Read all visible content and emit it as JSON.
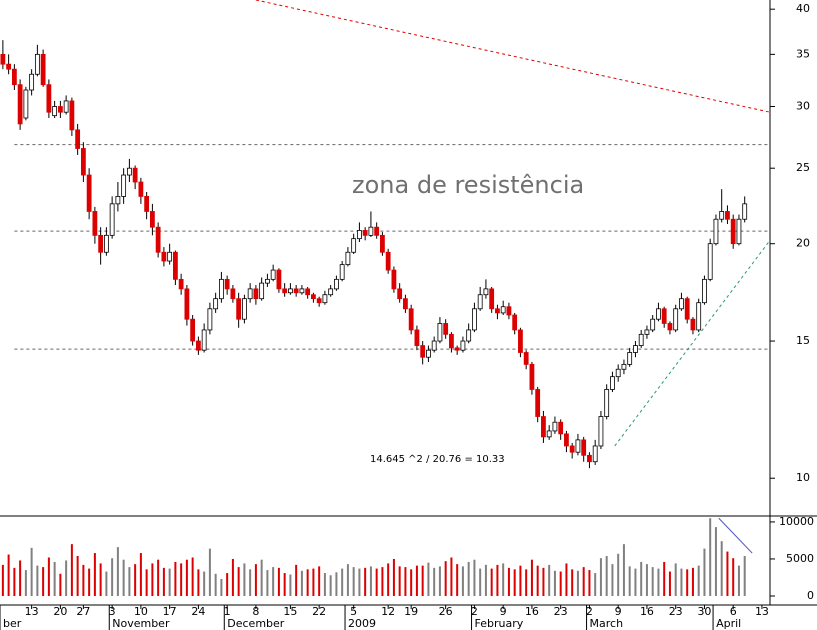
{
  "chart_data": {
    "type": "candlestick",
    "annotations": [
      "zona de resistência",
      "14.645 ^2 / 20.76 = 10.33"
    ],
    "ohlc": [
      [
        35,
        36.5,
        33.5,
        34
      ],
      [
        34,
        35,
        33,
        33.5
      ],
      [
        33.5,
        34,
        31.5,
        32
      ],
      [
        32,
        32.5,
        28,
        28.5
      ],
      [
        29,
        31.8,
        28.8,
        31.5
      ],
      [
        31.5,
        33.5,
        31,
        33
      ],
      [
        33,
        36,
        32.8,
        35
      ],
      [
        35,
        35.5,
        31.8,
        32
      ],
      [
        32,
        32.5,
        29,
        29.5
      ],
      [
        29.2,
        30.5,
        29,
        30
      ],
      [
        30,
        30.5,
        29,
        29.5
      ],
      [
        29.5,
        31,
        29.3,
        30.5
      ],
      [
        30.5,
        30.8,
        27.5,
        28
      ],
      [
        28,
        28.5,
        26,
        26.5
      ],
      [
        26.5,
        27,
        24,
        24.5
      ],
      [
        24.5,
        25,
        21.5,
        22
      ],
      [
        22,
        22.3,
        20,
        20.5
      ],
      [
        20.5,
        21,
        18.8,
        19.5
      ],
      [
        19.5,
        21,
        19.3,
        20.5
      ],
      [
        20.5,
        23,
        20.3,
        22.5
      ],
      [
        22.5,
        24,
        22,
        23
      ],
      [
        23,
        25,
        22.5,
        24.5
      ],
      [
        24.5,
        25.7,
        24,
        25
      ],
      [
        25,
        25.2,
        23.5,
        24
      ],
      [
        24,
        24.3,
        22.5,
        23
      ],
      [
        23,
        23.3,
        21.5,
        22
      ],
      [
        22,
        22.5,
        20.5,
        21
      ],
      [
        21,
        21.3,
        19.2,
        19.5
      ],
      [
        19.5,
        19.8,
        18.7,
        19
      ],
      [
        19,
        20,
        18.8,
        19.5
      ],
      [
        19.5,
        19.6,
        17.7,
        18
      ],
      [
        18,
        18.3,
        17.2,
        17.5
      ],
      [
        17.5,
        17.7,
        15.7,
        16
      ],
      [
        16,
        16.2,
        14.8,
        15
      ],
      [
        15,
        15.2,
        14.4,
        14.6
      ],
      [
        14.6,
        15.8,
        14.5,
        15.5
      ],
      [
        15.5,
        16.8,
        15.3,
        16.5
      ],
      [
        16.5,
        17.3,
        16.3,
        17
      ],
      [
        17,
        18.4,
        16.8,
        18
      ],
      [
        18,
        18.2,
        17.2,
        17.5
      ],
      [
        17.5,
        17.7,
        16.8,
        17
      ],
      [
        17,
        17.3,
        15.6,
        16
      ],
      [
        16,
        17.2,
        15.8,
        17
      ],
      [
        17,
        17.8,
        16.8,
        17.5
      ],
      [
        17.5,
        17.7,
        16.7,
        17
      ],
      [
        17,
        18.1,
        16.9,
        17.8
      ],
      [
        17.8,
        18.3,
        17.6,
        18
      ],
      [
        18,
        18.8,
        17.9,
        18.5
      ],
      [
        18.5,
        18.6,
        17.3,
        17.5
      ],
      [
        17.5,
        17.8,
        17.1,
        17.3
      ],
      [
        17.3,
        17.8,
        17.2,
        17.5
      ],
      [
        17.5,
        17.7,
        17.1,
        17.3
      ],
      [
        17.3,
        17.7,
        17.2,
        17.5
      ],
      [
        17.5,
        17.6,
        17,
        17.2
      ],
      [
        17.2,
        17.3,
        16.8,
        17
      ],
      [
        17,
        17.1,
        16.6,
        16.8
      ],
      [
        16.8,
        17.4,
        16.7,
        17.2
      ],
      [
        17.2,
        17.7,
        17.1,
        17.5
      ],
      [
        17.5,
        18.2,
        17.4,
        18
      ],
      [
        18,
        19,
        17.9,
        18.8
      ],
      [
        18.8,
        19.8,
        18.7,
        19.5
      ],
      [
        19.5,
        20.6,
        19.4,
        20.3
      ],
      [
        20.3,
        21.3,
        20.1,
        20.8
      ],
      [
        20.8,
        21,
        20.2,
        20.5
      ],
      [
        20.5,
        22,
        20.4,
        21
      ],
      [
        21,
        21.3,
        20.3,
        20.5
      ],
      [
        20.5,
        20.7,
        19.3,
        19.5
      ],
      [
        19.5,
        19.7,
        18.3,
        18.5
      ],
      [
        18.5,
        18.7,
        17.3,
        17.5
      ],
      [
        17.5,
        17.8,
        16.8,
        17
      ],
      [
        17,
        17.2,
        16.3,
        16.5
      ],
      [
        16.5,
        16.7,
        15.3,
        15.5
      ],
      [
        15.5,
        15.7,
        14.6,
        14.8
      ],
      [
        14.8,
        15,
        14,
        14.3
      ],
      [
        14.3,
        14.8,
        14.1,
        14.6
      ],
      [
        14.6,
        15.2,
        14.5,
        15
      ],
      [
        15,
        16.1,
        14.9,
        15.8
      ],
      [
        15.8,
        16,
        15.1,
        15.3
      ],
      [
        15.3,
        15.4,
        14.5,
        14.7
      ],
      [
        14.7,
        14.8,
        14.4,
        14.6
      ],
      [
        14.6,
        15.2,
        14.5,
        15
      ],
      [
        15,
        15.8,
        14.9,
        15.5
      ],
      [
        15.5,
        16.8,
        15.4,
        16.5
      ],
      [
        16.5,
        17.6,
        16.4,
        17.2
      ],
      [
        17.2,
        18,
        17,
        17.5
      ],
      [
        17.5,
        17.6,
        16.3,
        16.5
      ],
      [
        16.5,
        16.7,
        16,
        16.3
      ],
      [
        16.3,
        16.9,
        16.2,
        16.6
      ],
      [
        16.6,
        16.8,
        16,
        16.2
      ],
      [
        16.2,
        16.3,
        15.3,
        15.5
      ],
      [
        15.5,
        15.6,
        14.3,
        14.5
      ],
      [
        14.5,
        14.6,
        13.8,
        14
      ],
      [
        14,
        14.1,
        12.8,
        13
      ],
      [
        13,
        13.1,
        11.8,
        12
      ],
      [
        12,
        12.2,
        11.1,
        11.3
      ],
      [
        11.3,
        11.7,
        11.2,
        11.5
      ],
      [
        11.5,
        12,
        11.4,
        11.8
      ],
      [
        11.8,
        11.9,
        11.2,
        11.4
      ],
      [
        11.4,
        11.5,
        10.8,
        11
      ],
      [
        11,
        11.1,
        10.6,
        10.8
      ],
      [
        10.8,
        11.4,
        10.7,
        11.2
      ],
      [
        11.2,
        11.3,
        10.5,
        10.7
      ],
      [
        10.7,
        10.8,
        10.3,
        10.5
      ],
      [
        10.5,
        11.2,
        10.4,
        11
      ],
      [
        11,
        12.2,
        10.9,
        12
      ],
      [
        12,
        13.2,
        11.9,
        13
      ],
      [
        13,
        13.7,
        12.9,
        13.5
      ],
      [
        13.5,
        14,
        13.3,
        13.8
      ],
      [
        13.8,
        14.2,
        13.6,
        14
      ],
      [
        14,
        14.7,
        13.9,
        14.5
      ],
      [
        14.5,
        15,
        14.3,
        14.8
      ],
      [
        14.8,
        15.5,
        14.7,
        15.3
      ],
      [
        15.3,
        15.7,
        15.1,
        15.5
      ],
      [
        15.5,
        16.2,
        15.4,
        16
      ],
      [
        16,
        16.8,
        15.9,
        16.5
      ],
      [
        16.5,
        16.6,
        15.6,
        15.8
      ],
      [
        15.8,
        15.9,
        15.3,
        15.5
      ],
      [
        15.5,
        16.7,
        15.4,
        16.5
      ],
      [
        16.5,
        17.3,
        16.4,
        17
      ],
      [
        17,
        17.1,
        15.8,
        16
      ],
      [
        16,
        16.1,
        15.3,
        15.5
      ],
      [
        15.5,
        17,
        15.4,
        16.8
      ],
      [
        16.8,
        18.2,
        16.7,
        18
      ],
      [
        18,
        20.3,
        17.9,
        20
      ],
      [
        20,
        21.8,
        19.9,
        21.5
      ],
      [
        21.5,
        23.5,
        21.3,
        22
      ],
      [
        22,
        22.4,
        21.2,
        21.5
      ],
      [
        21.5,
        21.8,
        19.7,
        20
      ],
      [
        20,
        21.8,
        19.9,
        21.5
      ],
      [
        21.5,
        23,
        21.3,
        22.5
      ]
    ],
    "volume": [
      4200,
      5600,
      3800,
      4800,
      3500,
      6500,
      4100,
      3900,
      5200,
      4600,
      3000,
      4800,
      7000,
      5400,
      4200,
      3700,
      5800,
      4400,
      3300,
      5100,
      6600,
      4900,
      3900,
      4300,
      5800,
      3600,
      4400,
      4900,
      3800,
      3700,
      4600,
      4400,
      4900,
      5200,
      3600,
      3300,
      6400,
      3000,
      2300,
      3100,
      5000,
      3900,
      4400,
      3600,
      4300,
      4900,
      3500,
      3900,
      3800,
      3100,
      2900,
      4200,
      3400,
      3600,
      3700,
      4000,
      3100,
      2800,
      3200,
      3700,
      4300,
      3900,
      3700,
      3800,
      4000,
      3700,
      3900,
      4400,
      5000,
      4000,
      3900,
      3600,
      4100,
      4100,
      4500,
      3800,
      4000,
      4700,
      5200,
      4300,
      4000,
      4600,
      4900,
      3700,
      4200,
      3700,
      4200,
      4400,
      3800,
      3600,
      4100,
      3600,
      4900,
      4100,
      3800,
      4200,
      3400,
      3300,
      4400,
      3600,
      3400,
      3900,
      3500,
      3100,
      5100,
      5400,
      4300,
      5700,
      7000,
      4000,
      3700,
      4600,
      4300,
      3900,
      3700,
      4600,
      3300,
      4400,
      3700,
      3600,
      3800,
      4100,
      6400,
      10500,
      9300,
      7400,
      6000,
      5100,
      4100,
      5400
    ],
    "up_color": "#ffffff",
    "down_color": "#dd0000",
    "up_volume_color": "#808080",
    "down_volume_color": "#dd0000",
    "log_scale": true,
    "ylim": [
      8.97,
      41.1
    ],
    "yticks": [
      10,
      15,
      20,
      25,
      30,
      35,
      40
    ],
    "y2lim": [
      0,
      10800
    ],
    "y2ticks": [
      0,
      5000,
      10000
    ],
    "xlim": [
      -0.5,
      133.4
    ],
    "xticks": [
      {
        "value": 5,
        "label": "13"
      },
      {
        "value": 10,
        "label": "20"
      },
      {
        "value": 14,
        "label": "27"
      },
      {
        "value": 19,
        "label": "3"
      },
      {
        "value": 24,
        "label": "10"
      },
      {
        "value": 29,
        "label": "17"
      },
      {
        "value": 34,
        "label": "24"
      },
      {
        "value": 39,
        "label": "1"
      },
      {
        "value": 44,
        "label": "8"
      },
      {
        "value": 50,
        "label": "15"
      },
      {
        "value": 55,
        "label": "22"
      },
      {
        "value": 61,
        "label": "5"
      },
      {
        "value": 67,
        "label": "12"
      },
      {
        "value": 71,
        "label": "19"
      },
      {
        "value": 77,
        "label": "26"
      },
      {
        "value": 82,
        "label": "2"
      },
      {
        "value": 87,
        "label": "9"
      },
      {
        "value": 92,
        "label": "16"
      },
      {
        "value": 97,
        "label": "23"
      },
      {
        "value": 102,
        "label": "2"
      },
      {
        "value": 107,
        "label": "9"
      },
      {
        "value": 112,
        "label": "16"
      },
      {
        "value": 117,
        "label": "23"
      },
      {
        "value": 122,
        "label": "30"
      },
      {
        "value": 127,
        "label": "6"
      },
      {
        "value": 132,
        "label": "13"
      }
    ],
    "months": [
      {
        "value": -0.5,
        "label": "ber"
      },
      {
        "value": 18.5,
        "label": "November"
      },
      {
        "value": 38.5,
        "label": "December"
      },
      {
        "value": 59.5,
        "label": "2009"
      },
      {
        "value": 81.5,
        "label": "February"
      },
      {
        "value": 101.5,
        "label": "March"
      },
      {
        "value": 123.5,
        "label": "April"
      }
    ],
    "hlines": [
      26.8,
      20.76,
      14.645
    ],
    "trendlines": [
      {
        "x": [
          44,
          133.4
        ],
        "y": [
          41.1,
          29.5
        ],
        "color": "#e00000"
      },
      {
        "x": [
          106.4,
          133.4
        ],
        "y": [
          11,
          20.2
        ],
        "color": "#2a9a6a"
      }
    ],
    "volume_trendline": {
      "x": [
        124.5,
        130.3
      ],
      "y": [
        10500,
        5800
      ],
      "color": "#5050c0"
    }
  }
}
